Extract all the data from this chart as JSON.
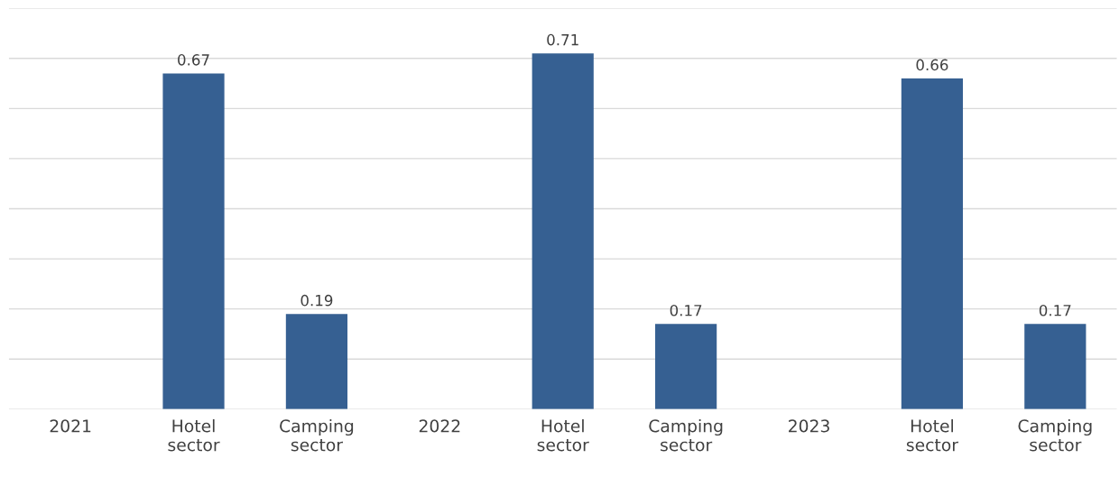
{
  "chart_data": {
    "type": "bar",
    "categories": [
      "2021",
      "Hotel\nsector",
      "Camping\nsector",
      "2022",
      "Hotel\nsector",
      "Camping\nsector",
      "2023",
      "Hotel\nsector",
      "Camping\nsector"
    ],
    "values": [
      null,
      0.67,
      0.19,
      null,
      0.71,
      0.17,
      null,
      0.66,
      0.17
    ],
    "color": "#366092",
    "ylim": [
      0,
      0.8
    ],
    "yticks": [
      {
        "value": 0,
        "label": null
      },
      {
        "value": 0.1,
        "label": null
      },
      {
        "value": 0.2,
        "label": null
      },
      {
        "value": 0.3,
        "label": null
      },
      {
        "value": 0.4,
        "label": null
      },
      {
        "value": 0.5,
        "label": null
      },
      {
        "value": 0.6,
        "label": null
      },
      {
        "value": 0.7,
        "label": null
      },
      {
        "value": 0.8,
        "label": null
      }
    ],
    "tick_labels": "x",
    "grid": "y",
    "data_labels": true
  }
}
